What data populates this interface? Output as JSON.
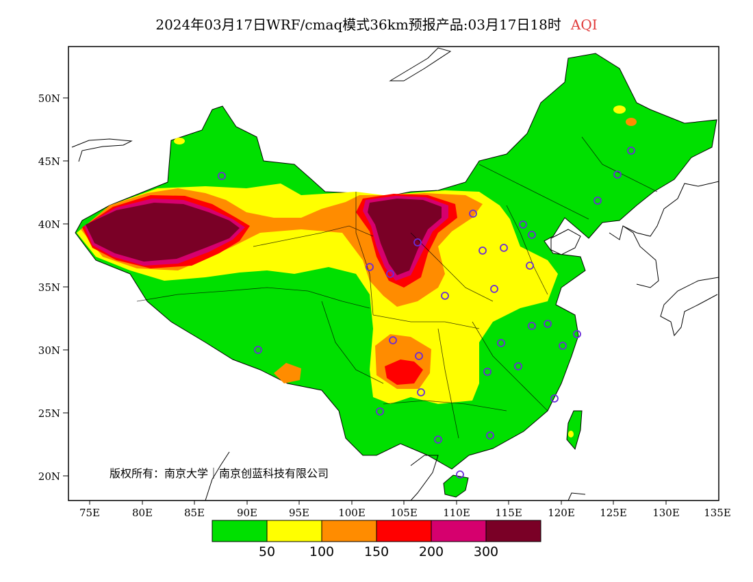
{
  "header": {
    "title": "2024年03月17日WRF/cmaq模式36km预报产品:03月17日18时",
    "variable": "AQI"
  },
  "map": {
    "lat_ticks": [
      "50N",
      "45N",
      "40N",
      "35N",
      "30N",
      "25N",
      "20N"
    ],
    "lon_ticks": [
      "75E",
      "80E",
      "85E",
      "90E",
      "95E",
      "100E",
      "105E",
      "110E",
      "115E",
      "120E",
      "125E",
      "130E",
      "135E"
    ],
    "copyright": "版权所有：南京大学｜南京创蓝科技有限公司"
  },
  "legend": {
    "colors": [
      "#00e000",
      "#ffff00",
      "#ff8c00",
      "#ff0000",
      "#d6006e",
      "#7a0026"
    ],
    "labels": [
      "50",
      "100",
      "150",
      "200",
      "300"
    ]
  }
}
